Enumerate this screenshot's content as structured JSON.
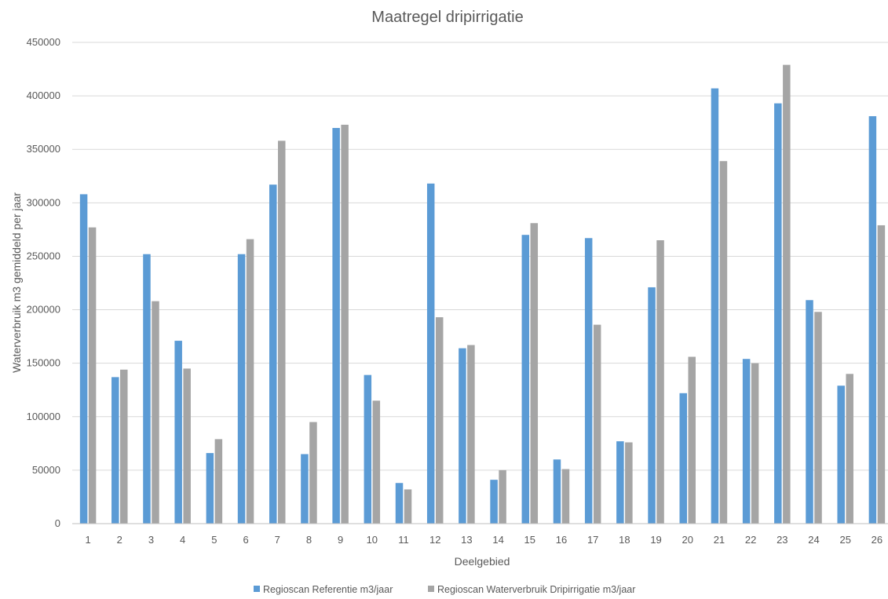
{
  "chart_data": {
    "type": "bar",
    "title": "Maatregel dripirrigatie",
    "xlabel": "Deelgebied",
    "ylabel": "Waterverbruik m3  gemiddeld per jaar",
    "ylim": [
      0,
      450000
    ],
    "yticks": [
      0,
      50000,
      100000,
      150000,
      200000,
      250000,
      300000,
      350000,
      400000,
      450000
    ],
    "ytick_labels": [
      "0",
      "50000",
      "100000",
      "150000",
      "200000",
      "250000",
      "300000",
      "350000",
      "400000",
      "450000"
    ],
    "grid": true,
    "legend_position": "bottom",
    "categories": [
      "1",
      "2",
      "3",
      "4",
      "5",
      "6",
      "7",
      "8",
      "9",
      "10",
      "11",
      "12",
      "13",
      "14",
      "15",
      "16",
      "17",
      "18",
      "19",
      "20",
      "21",
      "22",
      "23",
      "24",
      "25",
      "26"
    ],
    "series": [
      {
        "name": "Regioscan Referentie  m3/jaar",
        "color": "#5b9bd5",
        "values": [
          308000,
          137000,
          252000,
          171000,
          66000,
          252000,
          317000,
          65000,
          370000,
          139000,
          38000,
          318000,
          164000,
          41000,
          270000,
          60000,
          267000,
          77000,
          221000,
          122000,
          407000,
          154000,
          393000,
          209000,
          129000,
          381000
        ]
      },
      {
        "name": "Regioscan Waterverbruik Dripirrigatie m3/jaar",
        "color": "#a5a5a5",
        "values": [
          277000,
          144000,
          208000,
          145000,
          79000,
          266000,
          358000,
          95000,
          373000,
          115000,
          32000,
          193000,
          167000,
          50000,
          281000,
          51000,
          186000,
          76000,
          265000,
          156000,
          339000,
          150000,
          429000,
          198000,
          140000,
          279000
        ]
      }
    ]
  }
}
